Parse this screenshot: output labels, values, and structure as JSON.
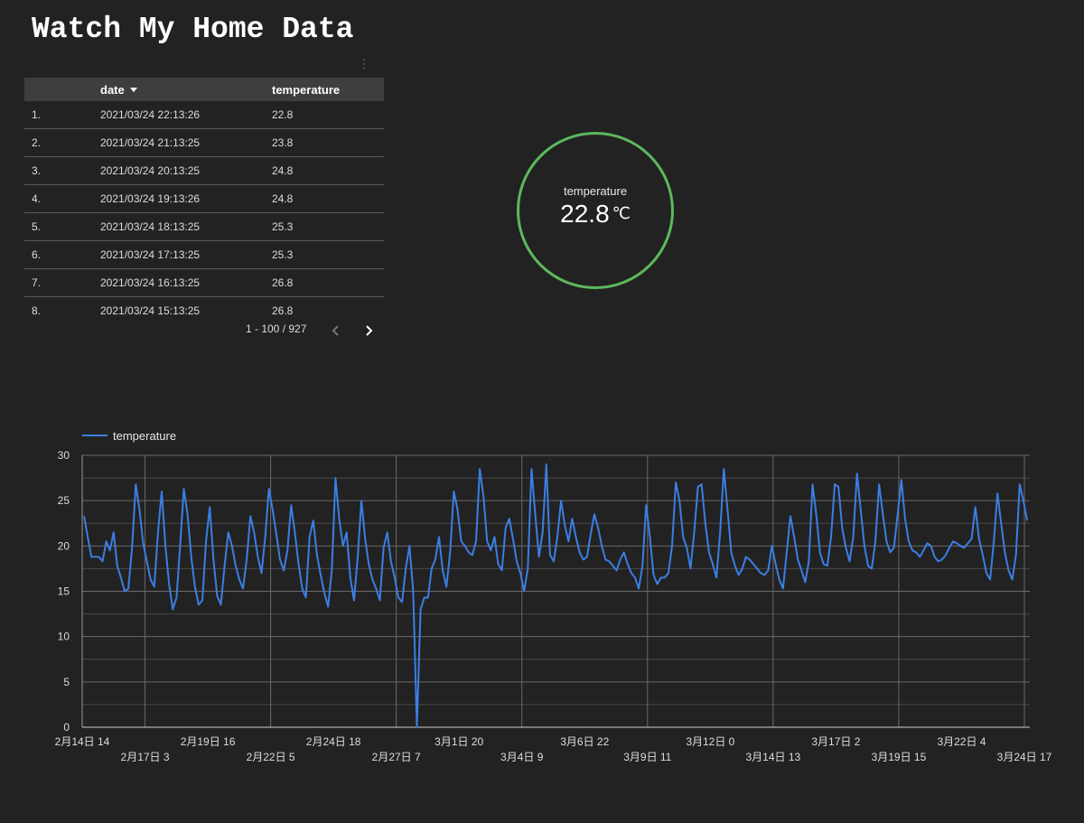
{
  "title": "Watch My Home Data",
  "table": {
    "columns": [
      "",
      "date",
      "temperature"
    ],
    "rows": [
      {
        "idx": "1.",
        "date": "2021/03/24 22:13:26",
        "temperature": "22.8"
      },
      {
        "idx": "2.",
        "date": "2021/03/24 21:13:25",
        "temperature": "23.8"
      },
      {
        "idx": "3.",
        "date": "2021/03/24 20:13:25",
        "temperature": "24.8"
      },
      {
        "idx": "4.",
        "date": "2021/03/24 19:13:26",
        "temperature": "24.8"
      },
      {
        "idx": "5.",
        "date": "2021/03/24 18:13:25",
        "temperature": "25.3"
      },
      {
        "idx": "6.",
        "date": "2021/03/24 17:13:25",
        "temperature": "25.3"
      },
      {
        "idx": "7.",
        "date": "2021/03/24 16:13:25",
        "temperature": "26.8"
      },
      {
        "idx": "8.",
        "date": "2021/03/24 15:13:25",
        "temperature": "26.8"
      }
    ],
    "pager": "1 - 100 / 927"
  },
  "scorecard": {
    "label": "temperature",
    "value": "22.8",
    "unit": "℃",
    "ring_color": "#5cb85c"
  },
  "chart_data": {
    "type": "line",
    "title": "",
    "xlabel": "",
    "ylabel": "",
    "ylim": [
      0,
      30
    ],
    "yticks": [
      0,
      5,
      10,
      15,
      20,
      25,
      30
    ],
    "grid": true,
    "legend": "top-left",
    "xtick_labels": [
      "2月14日 14",
      "2月17日 3",
      "2月19日 16",
      "2月22日 5",
      "2月24日 18",
      "2月27日 7",
      "3月1日 20",
      "3月4日 9",
      "3月6日 22",
      "3月9日 11",
      "3月12日 0",
      "3月14日 13",
      "3月17日 2",
      "3月19日 15",
      "3月22日 4",
      "3月24日 17"
    ],
    "series": [
      {
        "name": "temperature",
        "color": "#3a7ee4",
        "values": [
          23.3,
          21.0,
          18.8,
          18.8,
          18.8,
          18.3,
          20.5,
          19.5,
          21.5,
          17.8,
          16.5,
          15.0,
          15.3,
          19.8,
          26.8,
          24.0,
          20.3,
          18.3,
          16.3,
          15.5,
          21.5,
          26.0,
          20.0,
          15.8,
          13.0,
          14.3,
          20.0,
          26.3,
          23.5,
          18.8,
          15.5,
          13.5,
          14.0,
          20.5,
          24.3,
          18.5,
          14.5,
          13.5,
          17.8,
          21.5,
          20.0,
          17.8,
          16.3,
          15.3,
          18.5,
          23.3,
          21.5,
          18.8,
          17.0,
          21.0,
          26.3,
          24.0,
          21.3,
          18.5,
          17.3,
          19.5,
          24.5,
          21.5,
          18.0,
          15.3,
          14.3,
          21.0,
          22.8,
          19.0,
          16.8,
          14.8,
          13.3,
          17.3,
          27.5,
          23.0,
          20.0,
          21.5,
          16.5,
          14.0,
          18.8,
          25.0,
          20.8,
          18.0,
          16.3,
          15.3,
          14.0,
          19.8,
          21.5,
          18.3,
          16.5,
          14.3,
          13.8,
          17.5,
          20.0,
          15.0,
          0.0,
          13.0,
          14.3,
          14.3,
          17.5,
          18.5,
          21.0,
          17.3,
          15.5,
          19.3,
          26.0,
          24.0,
          20.5,
          20.0,
          19.3,
          19.0,
          20.5,
          28.5,
          25.5,
          20.5,
          19.5,
          21.0,
          18.0,
          17.3,
          22.0,
          23.0,
          20.8,
          18.3,
          17.0,
          15.0,
          17.5,
          28.5,
          23.5,
          18.8,
          21.5,
          29.0,
          19.0,
          18.3,
          21.0,
          25.0,
          22.3,
          20.5,
          23.0,
          21.0,
          19.3,
          18.5,
          18.8,
          21.3,
          23.5,
          22.0,
          20.0,
          18.5,
          18.3,
          17.8,
          17.3,
          18.5,
          19.3,
          18.0,
          17.0,
          16.5,
          15.3,
          17.8,
          24.5,
          21.0,
          16.8,
          15.8,
          16.5,
          16.5,
          17.0,
          20.0,
          27.0,
          25.0,
          21.0,
          19.8,
          17.5,
          21.5,
          26.5,
          26.8,
          22.5,
          19.3,
          18.0,
          16.5,
          21.5,
          28.5,
          24.0,
          19.3,
          17.8,
          16.8,
          17.5,
          18.8,
          18.5,
          18.0,
          17.5,
          17.0,
          16.8,
          17.3,
          20.0,
          18.0,
          16.3,
          15.3,
          19.3,
          23.3,
          21.0,
          18.5,
          17.3,
          16.0,
          18.3,
          26.8,
          23.5,
          19.3,
          18.0,
          17.8,
          21.0,
          26.8,
          26.5,
          22.0,
          19.8,
          18.3,
          21.0,
          28.0,
          24.0,
          20.0,
          17.8,
          17.5,
          20.5,
          26.8,
          23.5,
          20.5,
          19.3,
          19.8,
          23.5,
          27.3,
          23.0,
          20.5,
          19.5,
          19.3,
          18.8,
          19.5,
          20.3,
          20.0,
          18.8,
          18.3,
          18.5,
          19.0,
          19.8,
          20.5,
          20.3,
          20.0,
          19.8,
          20.3,
          20.8,
          24.3,
          20.8,
          19.0,
          17.0,
          16.3,
          20.5,
          25.8,
          22.5,
          19.3,
          17.3,
          16.3,
          19.0,
          26.8,
          25.0,
          22.8
        ]
      }
    ]
  }
}
